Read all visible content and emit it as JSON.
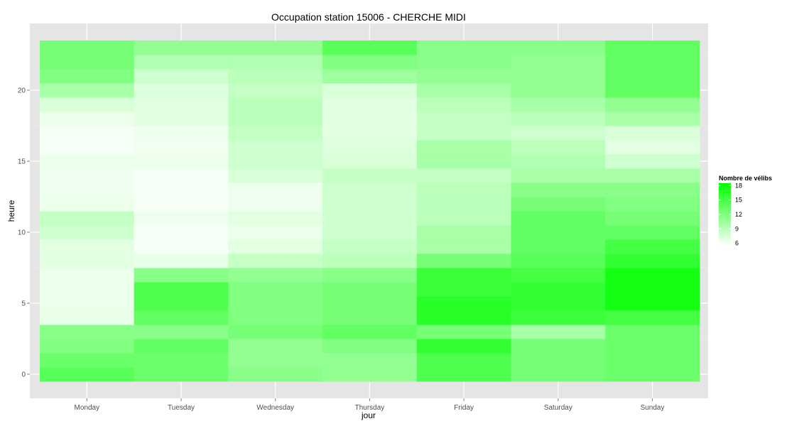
{
  "chart_data": {
    "type": "heatmap",
    "title": "Occupation station 15006 - CHERCHE MIDI",
    "xlabel": "jour",
    "ylabel": "heure",
    "x_categories": [
      "Monday",
      "Tuesday",
      "Wednesday",
      "Thursday",
      "Friday",
      "Saturday",
      "Sunday"
    ],
    "y_values": [
      0,
      1,
      2,
      3,
      4,
      5,
      6,
      7,
      8,
      9,
      10,
      11,
      12,
      13,
      14,
      15,
      16,
      17,
      18,
      19,
      20,
      21,
      22,
      23
    ],
    "ylim": [
      -0.5,
      23.5
    ],
    "y_ticks": [
      0,
      5,
      10,
      15,
      20
    ],
    "grid": true,
    "legend": {
      "title": "Nombre de vélibs",
      "placement": "right",
      "ticks": [
        6,
        9,
        12,
        15,
        18
      ],
      "range": [
        5.5,
        18.5
      ],
      "low_color": "#ffffff",
      "high_color": "#00ff00"
    },
    "background_color": "#e5e5e5",
    "values": [
      [
        14,
        13,
        12,
        11.5,
        6.8,
        6.5,
        6.5,
        6.5,
        7,
        7,
        8,
        8.5,
        6.5,
        6.3,
        6.3,
        6.5,
        6,
        6,
        6.5,
        7.5,
        10,
        12,
        12.5,
        12.5
      ],
      [
        13,
        13,
        13.5,
        11.5,
        13.5,
        14.5,
        14.5,
        11.5,
        6.8,
        6,
        6,
        6.3,
        6,
        6,
        6,
        6.5,
        6.2,
        6.3,
        7,
        7,
        7.3,
        8,
        9.5,
        11
      ],
      [
        11.5,
        11,
        11,
        12.5,
        12,
        12,
        12,
        11,
        8.5,
        7,
        6.5,
        7,
        6.3,
        6.3,
        7.5,
        8,
        8,
        8.5,
        9,
        9,
        8.5,
        9,
        9.5,
        11
      ],
      [
        11,
        11,
        12,
        13.5,
        12.5,
        12.5,
        12.5,
        11.5,
        9,
        8.5,
        8,
        8,
        8,
        8,
        8.5,
        7.5,
        7.2,
        7,
        7,
        7,
        7.5,
        10.5,
        12,
        14
      ],
      [
        14.5,
        14.5,
        16,
        12.5,
        16.5,
        16.5,
        15.5,
        15.5,
        12.5,
        10,
        10,
        9,
        9,
        9,
        8.5,
        10,
        10,
        8.5,
        8.5,
        9,
        10,
        11,
        11.5,
        11.5
      ],
      [
        12.5,
        12.5,
        12.5,
        10,
        15.5,
        16,
        16,
        15,
        14,
        13.5,
        13.5,
        13.5,
        12.5,
        11.5,
        10,
        9.5,
        9,
        8,
        9,
        10,
        11,
        11,
        11,
        11.5
      ],
      [
        13,
        13,
        13,
        13,
        15,
        17.5,
        17.5,
        17.5,
        16,
        15,
        13.5,
        12.5,
        12,
        11.5,
        10,
        8,
        7,
        7.5,
        10,
        11,
        13.5,
        13.5,
        13.5,
        13.5
      ]
    ]
  }
}
